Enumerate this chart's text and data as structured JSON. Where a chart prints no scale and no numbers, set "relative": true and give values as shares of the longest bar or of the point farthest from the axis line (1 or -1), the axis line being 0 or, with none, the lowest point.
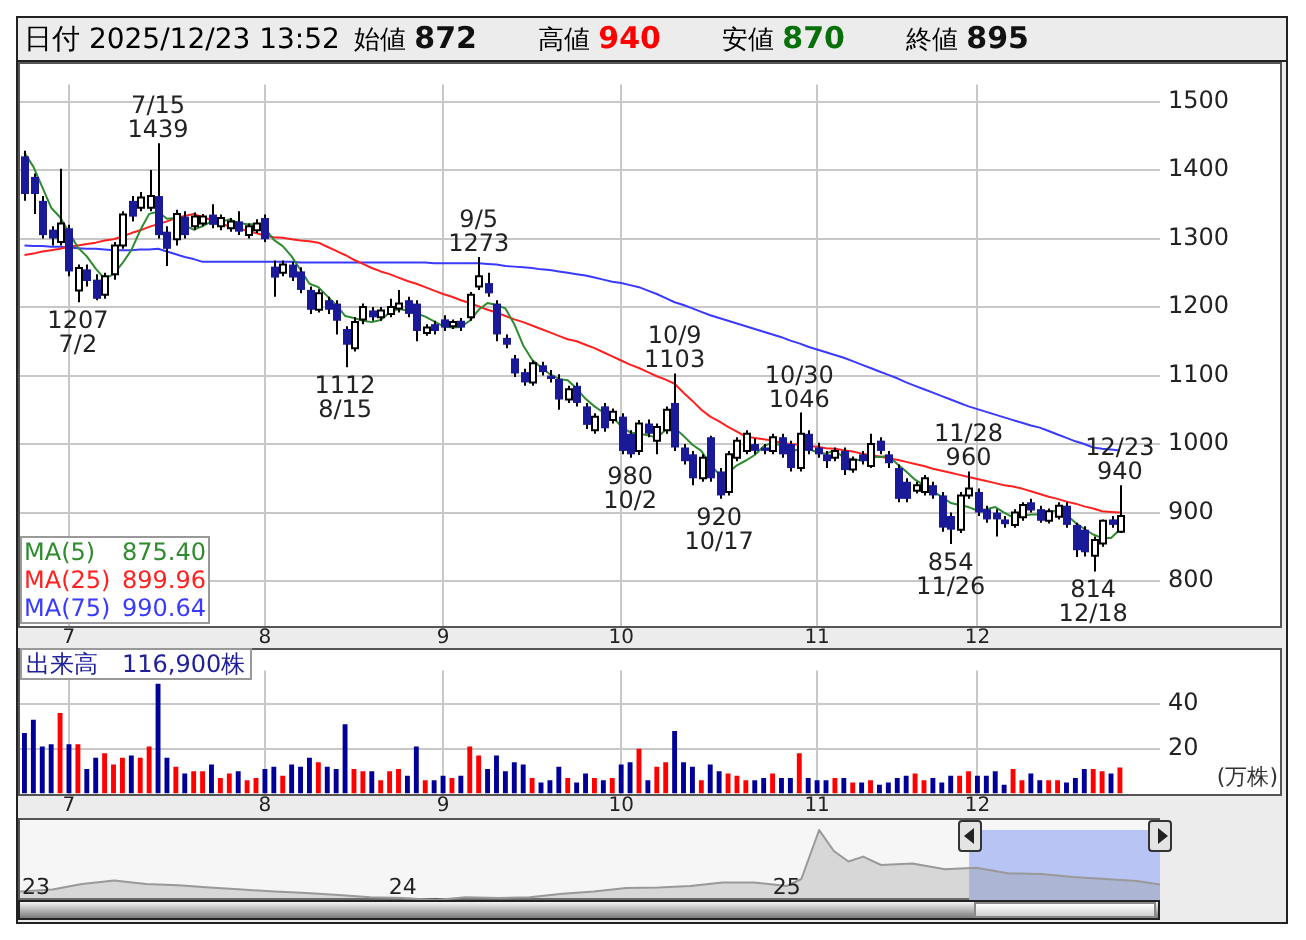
{
  "chart_data": [
    {
      "type": "candlestick",
      "title": "日付 2025/12/23 13:52",
      "categories": [
        null,
        null,
        null,
        null,
        null,
        "7",
        null,
        null,
        null,
        null,
        null,
        null,
        null,
        null,
        null,
        null,
        null,
        null,
        null,
        null,
        null,
        null,
        null,
        null,
        null,
        null,
        null,
        "8",
        null,
        null,
        null,
        null,
        null,
        null,
        null,
        null,
        null,
        null,
        null,
        null,
        null,
        null,
        null,
        null,
        null,
        null,
        null,
        "9",
        null,
        null,
        null,
        null,
        null,
        null,
        null,
        null,
        null,
        null,
        null,
        null,
        null,
        null,
        null,
        null,
        null,
        null,
        null,
        "10",
        null,
        null,
        null,
        null,
        null,
        null,
        null,
        null,
        null,
        null,
        null,
        null,
        null,
        null,
        null,
        null,
        null,
        null,
        null,
        null,
        null,
        "11",
        null,
        null,
        null,
        null,
        null,
        null,
        null,
        null,
        null,
        null,
        null,
        null,
        null,
        null,
        null,
        null,
        null,
        "12",
        null,
        null,
        null,
        null,
        null,
        null,
        null,
        null,
        null,
        null,
        null,
        null,
        null,
        null,
        null,
        null
      ],
      "ohlc": [
        [
          1420,
          1428,
          1355,
          1365
        ],
        [
          1390,
          1395,
          1336,
          1365
        ],
        [
          1355,
          1362,
          1300,
          1305
        ],
        [
          1313,
          1318,
          1290,
          1300
        ],
        [
          1295,
          1402,
          1290,
          1322
        ],
        [
          1315,
          1320,
          1245,
          1252
        ],
        [
          1224,
          1262,
          1207,
          1257
        ],
        [
          1255,
          1262,
          1230,
          1238
        ],
        [
          1240,
          1248,
          1210,
          1212
        ],
        [
          1218,
          1250,
          1212,
          1245
        ],
        [
          1248,
          1295,
          1240,
          1290
        ],
        [
          1290,
          1340,
          1285,
          1335
        ],
        [
          1355,
          1362,
          1325,
          1332
        ],
        [
          1345,
          1368,
          1340,
          1360
        ],
        [
          1345,
          1400,
          1340,
          1362
        ],
        [
          1362,
          1439,
          1300,
          1305
        ],
        [
          1310,
          1318,
          1260,
          1285
        ],
        [
          1299,
          1342,
          1290,
          1336
        ],
        [
          1332,
          1340,
          1300,
          1305
        ],
        [
          1318,
          1338,
          1312,
          1332
        ],
        [
          1322,
          1336,
          1318,
          1332
        ],
        [
          1335,
          1350,
          1315,
          1320
        ],
        [
          1318,
          1335,
          1312,
          1330
        ],
        [
          1315,
          1330,
          1310,
          1325
        ],
        [
          1325,
          1340,
          1305,
          1310
        ],
        [
          1305,
          1322,
          1300,
          1318
        ],
        [
          1312,
          1328,
          1308,
          1322
        ],
        [
          1330,
          1335,
          1295,
          1299
        ],
        [
          1259,
          1268,
          1215,
          1243
        ],
        [
          1250,
          1268,
          1245,
          1262
        ],
        [
          1262,
          1266,
          1238,
          1243
        ],
        [
          1252,
          1258,
          1220,
          1225
        ],
        [
          1225,
          1230,
          1190,
          1196
        ],
        [
          1196,
          1226,
          1192,
          1220
        ],
        [
          1210,
          1215,
          1190,
          1196
        ],
        [
          1205,
          1210,
          1160,
          1180
        ],
        [
          1168,
          1172,
          1112,
          1145
        ],
        [
          1140,
          1185,
          1135,
          1178
        ],
        [
          1182,
          1205,
          1175,
          1200
        ],
        [
          1195,
          1200,
          1180,
          1185
        ],
        [
          1185,
          1200,
          1180,
          1195
        ],
        [
          1190,
          1212,
          1185,
          1200
        ],
        [
          1198,
          1225,
          1192,
          1205
        ],
        [
          1210,
          1215,
          1185,
          1190
        ],
        [
          1205,
          1210,
          1150,
          1165
        ],
        [
          1162,
          1175,
          1158,
          1170
        ],
        [
          1175,
          1180,
          1160,
          1165
        ],
        [
          1182,
          1188,
          1165,
          1170
        ],
        [
          1172,
          1182,
          1168,
          1178
        ],
        [
          1180,
          1184,
          1165,
          1170
        ],
        [
          1185,
          1222,
          1180,
          1218
        ],
        [
          1230,
          1273,
          1225,
          1245
        ],
        [
          1235,
          1250,
          1215,
          1220
        ],
        [
          1205,
          1210,
          1150,
          1160
        ],
        [
          1155,
          1160,
          1140,
          1145
        ],
        [
          1125,
          1130,
          1098,
          1103
        ],
        [
          1105,
          1110,
          1085,
          1090
        ],
        [
          1090,
          1122,
          1085,
          1118
        ],
        [
          1115,
          1120,
          1100,
          1105
        ],
        [
          1100,
          1108,
          1090,
          1095
        ],
        [
          1095,
          1102,
          1050,
          1065
        ],
        [
          1065,
          1085,
          1060,
          1080
        ],
        [
          1085,
          1090,
          1055,
          1060
        ],
        [
          1055,
          1060,
          1022,
          1028
        ],
        [
          1020,
          1045,
          1015,
          1040
        ],
        [
          1055,
          1060,
          1018,
          1023
        ],
        [
          1035,
          1052,
          1030,
          1047
        ],
        [
          1040,
          1045,
          985,
          990
        ],
        [
          1015,
          1020,
          980,
          985
        ],
        [
          990,
          1035,
          984,
          1030
        ],
        [
          1030,
          1036,
          1010,
          1015
        ],
        [
          1005,
          1030,
          985,
          1025
        ],
        [
          1020,
          1055,
          1015,
          1050
        ],
        [
          1060,
          1103,
          990,
          995
        ],
        [
          995,
          1000,
          970,
          975
        ],
        [
          985,
          990,
          940,
          950
        ],
        [
          950,
          985,
          945,
          980
        ],
        [
          1010,
          1012,
          945,
          950
        ],
        [
          960,
          965,
          920,
          925
        ],
        [
          930,
          990,
          925,
          985
        ],
        [
          980,
          1010,
          975,
          1005
        ],
        [
          990,
          1020,
          985,
          1015
        ],
        [
          1000,
          1008,
          985,
          990
        ],
        [
          995,
          1000,
          985,
          990
        ],
        [
          990,
          1015,
          985,
          1010
        ],
        [
          1010,
          1015,
          980,
          985
        ],
        [
          1000,
          1005,
          960,
          965
        ],
        [
          965,
          1046,
          960,
          1015
        ],
        [
          1015,
          1020,
          985,
          990
        ],
        [
          995,
          1002,
          980,
          985
        ],
        [
          985,
          990,
          965,
          975
        ],
        [
          980,
          995,
          975,
          990
        ],
        [
          990,
          995,
          955,
          962
        ],
        [
          963,
          982,
          958,
          977
        ],
        [
          985,
          990,
          970,
          975
        ],
        [
          968,
          1015,
          965,
          1000
        ],
        [
          1005,
          1010,
          985,
          990
        ],
        [
          985,
          990,
          965,
          972
        ],
        [
          965,
          970,
          915,
          920
        ],
        [
          945,
          950,
          915,
          920
        ],
        [
          932,
          945,
          928,
          940
        ],
        [
          930,
          955,
          925,
          950
        ],
        [
          940,
          945,
          920,
          925
        ],
        [
          925,
          930,
          872,
          878
        ],
        [
          895,
          900,
          854,
          875
        ],
        [
          875,
          930,
          870,
          925
        ],
        [
          925,
          960,
          920,
          935
        ],
        [
          930,
          935,
          895,
          900
        ],
        [
          905,
          910,
          885,
          890
        ],
        [
          900,
          905,
          865,
          890
        ],
        [
          890,
          895,
          878,
          883
        ],
        [
          882,
          905,
          878,
          900
        ],
        [
          893,
          915,
          888,
          911
        ],
        [
          915,
          920,
          900,
          903
        ],
        [
          905,
          910,
          885,
          888
        ],
        [
          888,
          906,
          884,
          902
        ],
        [
          894,
          915,
          890,
          910
        ],
        [
          910,
          915,
          878,
          882
        ],
        [
          882,
          885,
          835,
          845
        ],
        [
          875,
          880,
          836,
          842
        ],
        [
          837,
          865,
          814,
          860
        ],
        [
          855,
          890,
          850,
          888
        ],
        [
          890,
          895,
          878,
          882
        ],
        [
          872,
          940,
          870,
          895
        ]
      ],
      "series": [
        {
          "name": "MA(5)",
          "type": "line",
          "color": "#2e8b2e",
          "values": [
            1425,
            1405,
            1375,
            1345,
            1331,
            1309,
            1287,
            1274,
            1256,
            1241,
            1248,
            1264,
            1283,
            1312,
            1336,
            1339,
            1329,
            1330,
            1319,
            1313,
            1318,
            1325,
            1324,
            1328,
            1323,
            1321,
            1321,
            1315,
            1298,
            1289,
            1274,
            1254,
            1234,
            1229,
            1216,
            1203,
            1187,
            1184,
            1180,
            1178,
            1181,
            1192,
            1197,
            1195,
            1191,
            1186,
            1179,
            1172,
            1170,
            1171,
            1180,
            1196,
            1206,
            1203,
            1198,
            1175,
            1144,
            1123,
            1112,
            1102,
            1095,
            1093,
            1081,
            1066,
            1055,
            1046,
            1040,
            1026,
            1017,
            1015,
            1013,
            1009,
            1021,
            1023,
            1012,
            999,
            990,
            970,
            956,
            958,
            969,
            976,
            984,
            997,
            1002,
            998,
            988,
            993,
            993,
            988,
            986,
            991,
            980,
            978,
            976,
            981,
            981,
            983,
            971,
            960,
            948,
            940,
            931,
            923,
            914,
            911,
            908,
            903,
            905,
            908,
            900,
            893,
            895,
            897,
            897,
            901,
            903,
            897,
            885,
            876,
            868,
            863,
            863,
            875.4
          ]
        },
        {
          "name": "MA(25)",
          "type": "line",
          "color": "#ff2020",
          "values": [
            1276,
            1278,
            1281,
            1283,
            1285,
            1288,
            1290,
            1292,
            1294,
            1297,
            1299,
            1303,
            1308,
            1312,
            1317,
            1321,
            1325,
            1330,
            1333,
            1336,
            1331,
            1327,
            1322,
            1318,
            1315,
            1311,
            1308,
            1304,
            1302,
            1301,
            1299,
            1297,
            1296,
            1294,
            1288,
            1282,
            1276,
            1269,
            1263,
            1257,
            1252,
            1248,
            1243,
            1238,
            1234,
            1229,
            1224,
            1219,
            1215,
            1210,
            1206,
            1201,
            1196,
            1192,
            1187,
            1182,
            1178,
            1173,
            1168,
            1163,
            1158,
            1153,
            1150,
            1145,
            1140,
            1134,
            1128,
            1122,
            1116,
            1111,
            1105,
            1099,
            1094,
            1088,
            1075,
            1063,
            1050,
            1040,
            1033,
            1025,
            1018,
            1011,
            1009,
            1007,
            1005,
            1002,
            1000,
            999,
            997,
            996,
            994,
            993,
            991,
            989,
            986,
            984,
            982,
            979,
            977,
            974,
            971,
            968,
            964,
            961,
            958,
            955,
            952,
            949,
            946,
            943,
            940,
            938,
            935,
            931,
            927,
            923,
            920,
            916,
            913,
            909,
            906,
            902,
            901,
            899.96
          ]
        },
        {
          "name": "MA(75)",
          "type": "line",
          "color": "#3a3aff",
          "values": [
            1290,
            1289,
            1289,
            1288,
            1288,
            1287,
            1286,
            1285,
            1285,
            1284,
            1283,
            1283,
            1283,
            1284,
            1284,
            1285,
            1281,
            1277,
            1273,
            1270,
            1266,
            1266,
            1266,
            1266,
            1266,
            1266,
            1266,
            1266,
            1266,
            1266,
            1266,
            1265,
            1265,
            1265,
            1265,
            1265,
            1265,
            1265,
            1265,
            1265,
            1265,
            1265,
            1265,
            1265,
            1265,
            1265,
            1264,
            1264,
            1264,
            1264,
            1264,
            1264,
            1263,
            1262,
            1260,
            1259,
            1258,
            1257,
            1255,
            1254,
            1252,
            1250,
            1248,
            1246,
            1243,
            1240,
            1237,
            1235,
            1232,
            1229,
            1224,
            1219,
            1213,
            1207,
            1203,
            1198,
            1193,
            1188,
            1184,
            1180,
            1176,
            1172,
            1168,
            1164,
            1160,
            1156,
            1151,
            1147,
            1142,
            1138,
            1134,
            1130,
            1126,
            1121,
            1116,
            1111,
            1106,
            1101,
            1096,
            1090,
            1085,
            1080,
            1075,
            1070,
            1065,
            1060,
            1055,
            1051,
            1047,
            1043,
            1039,
            1035,
            1031,
            1027,
            1024,
            1019,
            1014,
            1009,
            1004,
            1000,
            995,
            993,
            992,
            990.64
          ]
        }
      ],
      "ylim": [
        735,
        1525
      ],
      "yticks": [
        800,
        900,
        1000,
        1100,
        1200,
        1300,
        1400,
        1500
      ],
      "grid": true,
      "legend": "bottom left",
      "annotations": [
        "始値 872",
        "高値 940",
        "安値 870",
        "終値 895",
        {
          "text": "7/15\n1439",
          "y": 1439
        },
        {
          "text": "1207\n7/2",
          "y": 1207
        },
        {
          "text": "1112\n8/15",
          "y": 1112
        },
        {
          "text": "9/5\n1273",
          "y": 1273
        },
        {
          "text": "980\n10/2",
          "y": 980
        },
        {
          "text": "10/9\n1103",
          "y": 1103
        },
        {
          "text": "920\n10/17",
          "y": 920
        },
        {
          "text": "10/30\n1046",
          "y": 1046
        },
        {
          "text": "854\n11/26",
          "y": 854
        },
        {
          "text": "11/28\n960",
          "y": 960
        },
        {
          "text": "814\n12/18",
          "y": 814
        },
        {
          "text": "12/23\n940",
          "y": 940
        },
        "875.40",
        "899.96",
        "990.64"
      ]
    },
    {
      "type": "bar",
      "ylabel": "(万株)",
      "categories": [
        null,
        null,
        null,
        null,
        null,
        "7",
        null,
        null,
        null,
        null,
        null,
        null,
        null,
        null,
        null,
        null,
        null,
        null,
        null,
        null,
        null,
        null,
        null,
        null,
        null,
        null,
        null,
        "8",
        null,
        null,
        null,
        null,
        null,
        null,
        null,
        null,
        null,
        null,
        null,
        null,
        null,
        null,
        null,
        null,
        null,
        null,
        null,
        "9",
        null,
        null,
        null,
        null,
        null,
        null,
        null,
        null,
        null,
        null,
        null,
        null,
        null,
        null,
        null,
        null,
        null,
        null,
        null,
        "10",
        null,
        null,
        null,
        null,
        null,
        null,
        null,
        null,
        null,
        null,
        null,
        null,
        null,
        null,
        null,
        null,
        null,
        null,
        null,
        null,
        null,
        "11",
        null,
        null,
        null,
        null,
        null,
        null,
        null,
        null,
        null,
        null,
        null,
        null,
        null,
        null,
        null,
        null,
        null,
        "12",
        null,
        null,
        null,
        null,
        null,
        null,
        null,
        null,
        null,
        null,
        null,
        null,
        null,
        null,
        null,
        null
      ],
      "values": [
        27,
        33,
        21,
        22,
        36,
        22,
        22,
        11,
        16,
        18,
        13,
        16,
        17,
        16,
        21,
        49,
        16,
        12,
        9,
        10,
        10,
        13,
        7,
        9,
        10,
        6,
        7,
        11,
        12,
        8,
        13,
        12,
        16,
        14,
        12,
        11,
        31,
        11,
        10,
        10,
        6,
        10,
        11,
        8,
        21,
        6,
        6,
        8,
        7,
        8,
        21,
        17,
        11,
        17,
        10,
        14,
        13,
        7,
        5,
        6,
        12,
        7,
        5,
        9,
        7,
        6,
        7,
        13,
        14,
        20,
        6,
        12,
        14,
        28,
        14,
        12,
        6,
        13,
        10,
        9,
        8,
        6,
        6,
        7,
        9,
        7,
        7,
        18,
        7,
        6,
        6,
        7,
        7,
        5,
        5,
        6,
        4,
        5,
        7,
        8,
        9,
        6,
        7,
        5,
        8,
        8,
        10,
        8,
        8,
        10,
        4,
        11,
        6,
        9,
        6,
        6,
        6,
        5,
        7,
        11,
        11,
        10,
        9,
        11.69
      ],
      "colors": [
        "#000099",
        "#000099",
        "#000099",
        "#000099",
        "#ff0000",
        "#000099",
        "#ff0000",
        "#000099",
        "#000099",
        "#ff0000",
        "#ff0000",
        "#ff0000",
        "#000099",
        "#ff0000",
        "#ff0000",
        "#000099",
        "#000099",
        "#ff0000",
        "#000099",
        "#ff0000",
        "#ff0000",
        "#000099",
        "#ff0000",
        "#ff0000",
        "#000099",
        "#ff0000",
        "#ff0000",
        "#000099",
        "#000099",
        "#ff0000",
        "#000099",
        "#000099",
        "#000099",
        "#ff0000",
        "#000099",
        "#000099",
        "#000099",
        "#ff0000",
        "#ff0000",
        "#000099",
        "#ff0000",
        "#ff0000",
        "#ff0000",
        "#000099",
        "#000099",
        "#ff0000",
        "#000099",
        "#000099",
        "#ff0000",
        "#000099",
        "#ff0000",
        "#ff0000",
        "#000099",
        "#000099",
        "#000099",
        "#000099",
        "#000099",
        "#ff0000",
        "#000099",
        "#000099",
        "#000099",
        "#ff0000",
        "#000099",
        "#000099",
        "#ff0000",
        "#000099",
        "#ff0000",
        "#000099",
        "#000099",
        "#ff0000",
        "#000099",
        "#ff0000",
        "#ff0000",
        "#000099",
        "#000099",
        "#000099",
        "#ff0000",
        "#000099",
        "#000099",
        "#ff0000",
        "#ff0000",
        "#ff0000",
        "#000099",
        "#000099",
        "#ff0000",
        "#000099",
        "#000099",
        "#ff0000",
        "#000099",
        "#000099",
        "#000099",
        "#ff0000",
        "#000099",
        "#ff0000",
        "#000099",
        "#ff0000",
        "#000099",
        "#000099",
        "#000099",
        "#000099",
        "#ff0000",
        "#ff0000",
        "#000099",
        "#000099",
        "#000099",
        "#ff0000",
        "#ff0000",
        "#000099",
        "#000099",
        "#000099",
        "#000099",
        "#ff0000",
        "#ff0000",
        "#000099",
        "#000099",
        "#ff0000",
        "#ff0000",
        "#000099",
        "#000099",
        "#000099",
        "#ff0000",
        "#ff0000",
        "#000099",
        "#ff0000"
      ],
      "ylim": [
        0,
        55
      ],
      "yticks": [
        20,
        40
      ],
      "grid": true,
      "annotations": [
        "出来高　116,900株"
      ]
    },
    {
      "type": "area",
      "relative": true,
      "tick_labels": "x",
      "x": [
        "2023-01",
        "2023-02",
        "2023-03",
        "2023-04",
        "2023-05",
        "2023-06",
        "2023-07",
        "2023-08",
        "2023-09",
        "2023-10",
        "2023-11",
        "2023-12",
        "2024-01",
        "2024-02",
        "2024-03",
        "2024-04",
        "2024-05",
        "2024-06",
        "2024-07",
        "2024-08",
        "2024-09",
        "2024-10",
        "2024-11",
        "2024-12",
        "2025-01",
        "2025-01-15",
        "2025-02",
        "2025-02-15",
        "2025-03",
        "2025-03-15",
        "2025-04",
        "2025-05",
        "2025-06",
        "2025-07",
        "2025-08",
        "2025-09",
        "2025-10",
        "2025-11",
        "2025-12",
        "2025-12-23"
      ],
      "series": [
        {
          "color": "#999999",
          "values": [
            0.12,
            0.15,
            0.23,
            0.28,
            0.23,
            0.21,
            0.18,
            0.15,
            0.12,
            0.1,
            0.07,
            0.04,
            0.03,
            0,
            0.04,
            0.03,
            0.04,
            0.09,
            0.12,
            0.17,
            0.18,
            0.2,
            0.25,
            0.25,
            0.2,
            0.3,
            1,
            0.7,
            0.55,
            0.62,
            0.5,
            0.52,
            0.44,
            0.46,
            0.38,
            0.37,
            0.33,
            0.3,
            0.27,
            0.22
          ]
        }
      ],
      "xlim": [
        "2023-01-01",
        "2025-12-23"
      ],
      "xticks": [
        {
          "value": "2023-01-01",
          "label": "23"
        },
        {
          "value": "2024-01-01",
          "label": "24"
        },
        {
          "value": "2025-01-01",
          "label": "25"
        }
      ],
      "bands": [
        {
          "axis": "x",
          "from": "2025-06-24",
          "to": "2025-12-23",
          "color": "#b8c4f4"
        }
      ]
    }
  ]
}
